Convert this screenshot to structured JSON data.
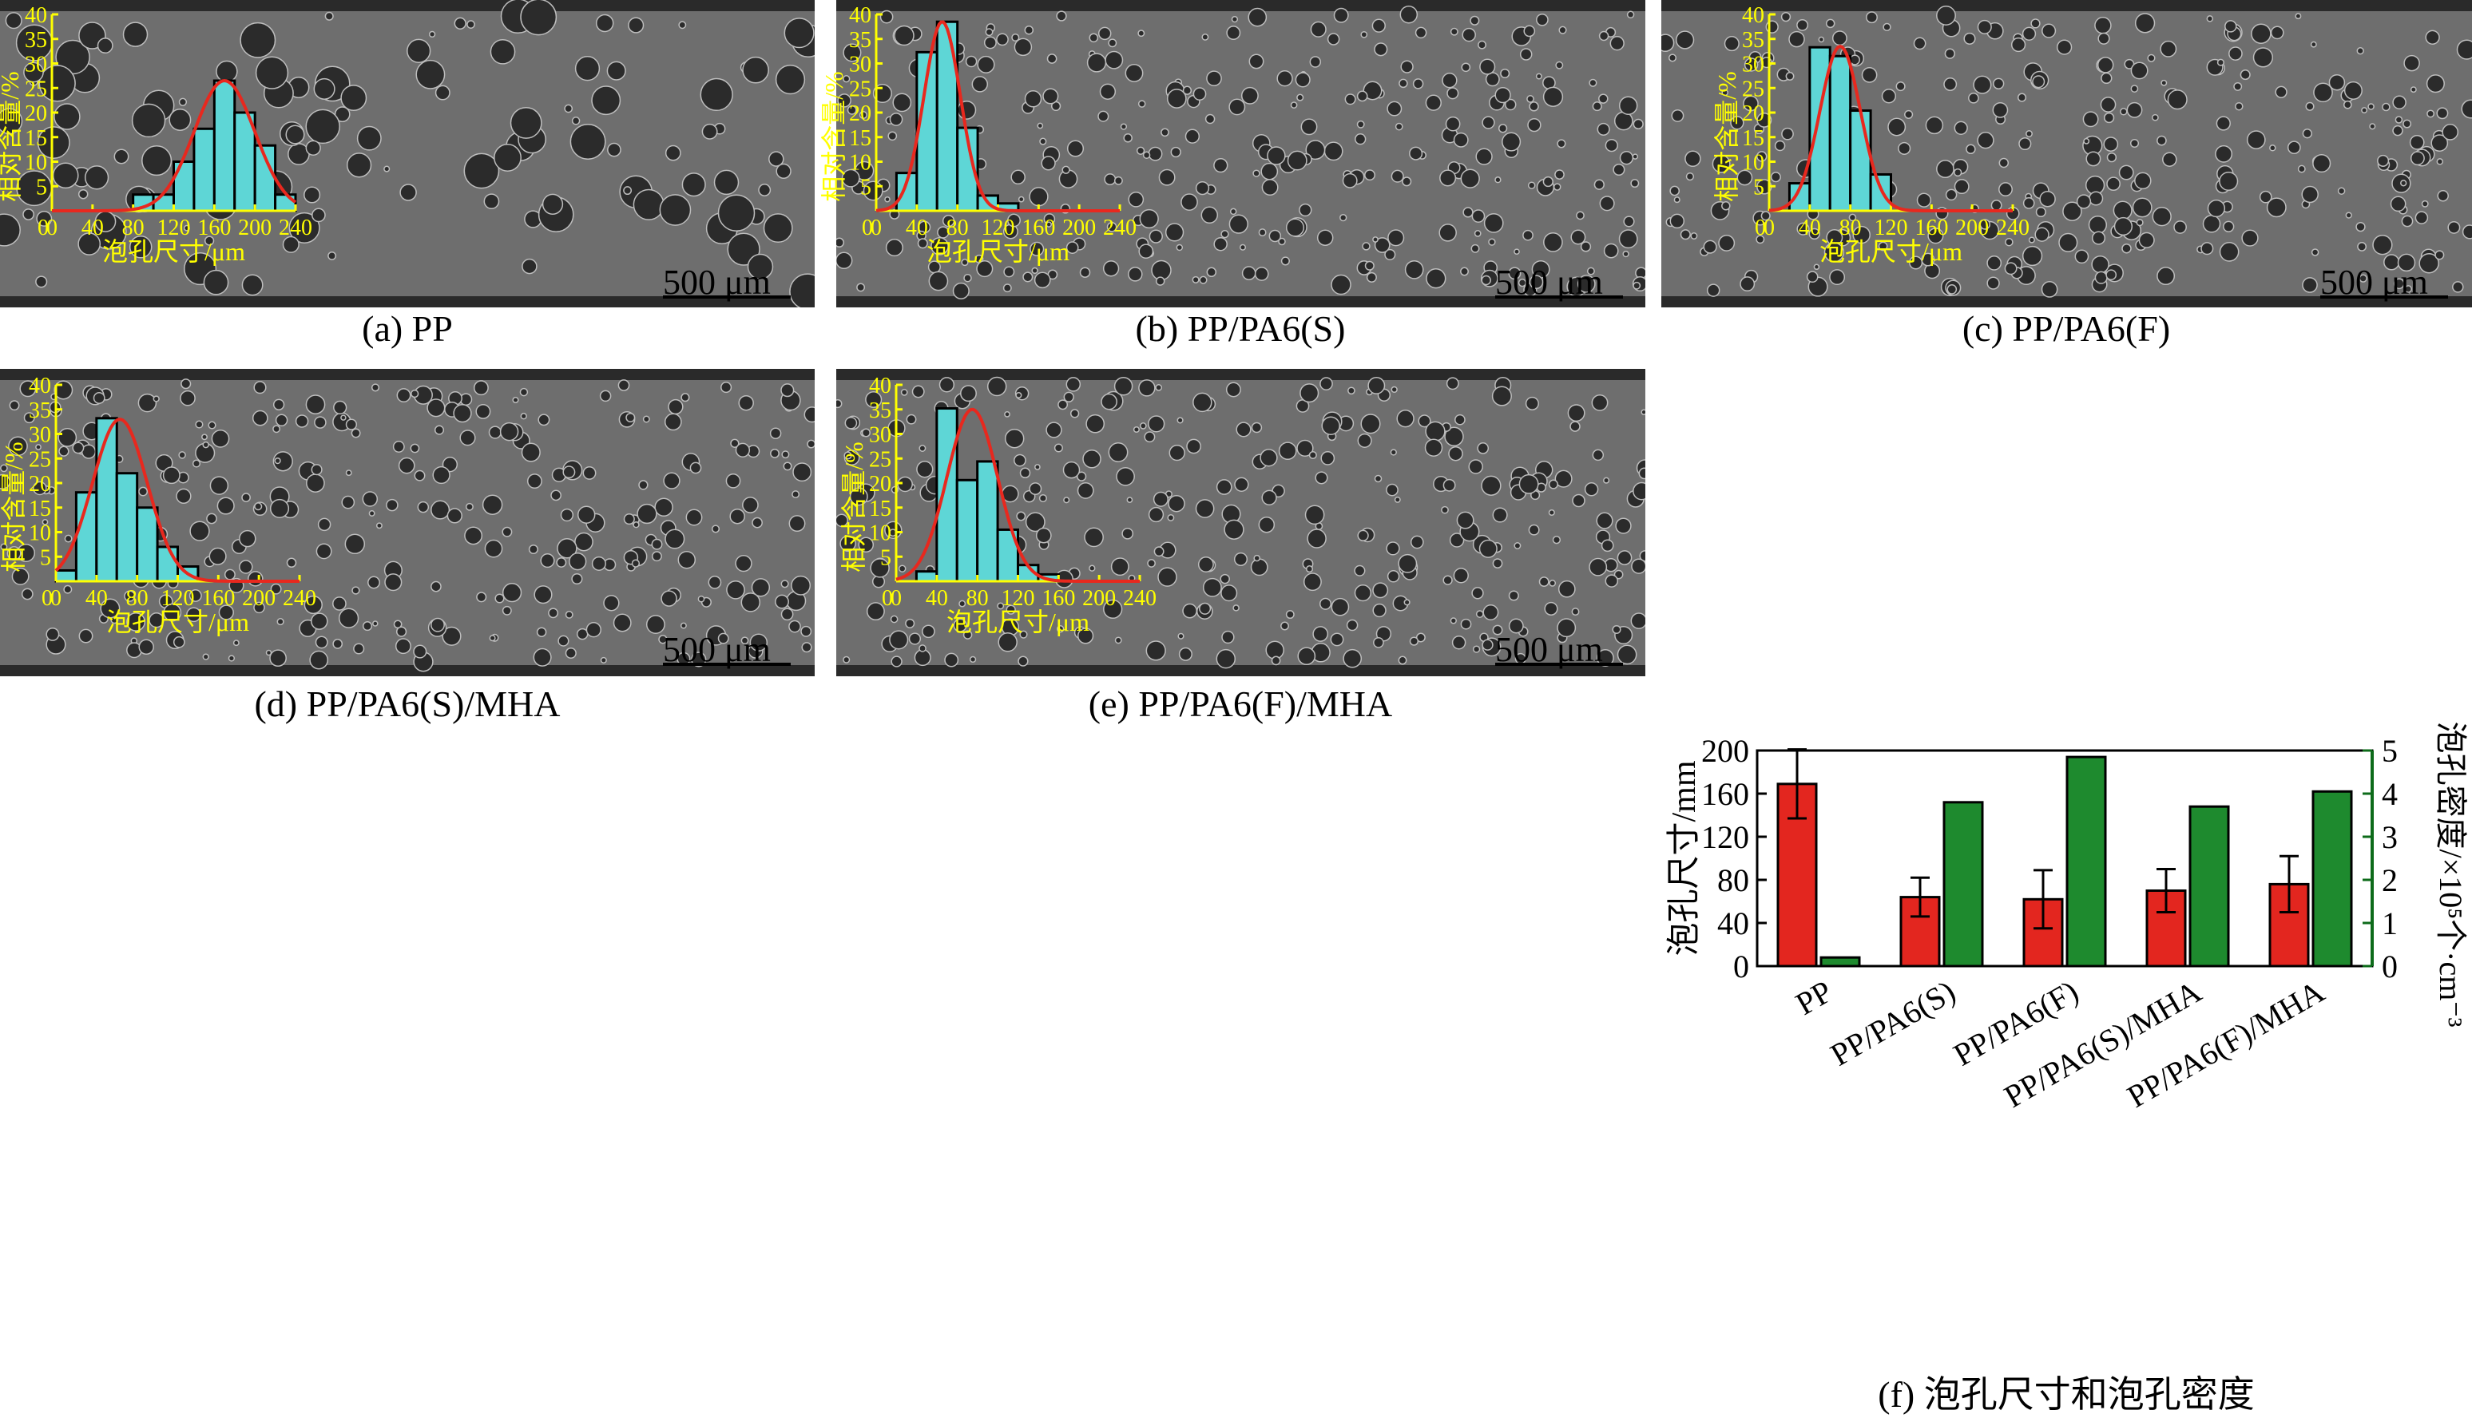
{
  "scale_bar_label": "500 μm",
  "colors": {
    "histogram_axis": "#ffff00",
    "histogram_bar": "#5ed6d6",
    "fit_curve": "#e8281e",
    "size_bar": "#e3261f",
    "density_bar": "#1e8a2e",
    "density_axis": "#0d6b1a",
    "sem_background": "#6e6e6e"
  },
  "captions": {
    "a": "(a) PP",
    "b": "(b) PP/PA6(S)",
    "c": "(c) PP/PA6(F)",
    "d": "(d) PP/PA6(S)/MHA",
    "e": "(e) PP/PA6(F)/MHA",
    "f": "(f) 泡孔尺寸和泡孔密度"
  },
  "chart_data": [
    {
      "id": "a",
      "type": "bar",
      "title": "",
      "xlabel": "泡孔尺寸/μm",
      "ylabel": "相对含量/%",
      "xlim": [
        0,
        240
      ],
      "ylim": [
        0,
        40
      ],
      "xticks": [
        0,
        40,
        80,
        120,
        160,
        200,
        240
      ],
      "yticks": [
        5,
        10,
        15,
        20,
        25,
        30,
        35,
        40
      ],
      "bin_width": 20,
      "bin_starts": [
        80,
        100,
        120,
        140,
        160,
        180,
        200,
        220
      ],
      "values": [
        3.3,
        3.3,
        10,
        16.7,
        26.5,
        20,
        13.3,
        3.3
      ],
      "fit": {
        "mean": 170,
        "sd": 30,
        "peak": 26.5
      }
    },
    {
      "id": "b",
      "type": "bar",
      "title": "",
      "xlabel": "泡孔尺寸/μm",
      "ylabel": "相对含量/%",
      "xlim": [
        0,
        240
      ],
      "ylim": [
        0,
        40
      ],
      "xticks": [
        0,
        40,
        80,
        120,
        160,
        200,
        240
      ],
      "yticks": [
        5,
        10,
        15,
        20,
        25,
        30,
        35,
        40
      ],
      "bin_width": 20,
      "bin_starts": [
        20,
        40,
        60,
        80,
        100,
        120
      ],
      "values": [
        7.7,
        32.3,
        38.5,
        16.9,
        3.1,
        1.5
      ],
      "fit": {
        "mean": 65,
        "sd": 18,
        "peak": 38.5
      }
    },
    {
      "id": "c",
      "type": "bar",
      "title": "",
      "xlabel": "泡孔尺寸/μm",
      "ylabel": "相对含量/%",
      "xlim": [
        0,
        240
      ],
      "ylim": [
        0,
        40
      ],
      "xticks": [
        0,
        40,
        80,
        120,
        160,
        200,
        240
      ],
      "yticks": [
        5,
        10,
        15,
        20,
        25,
        30,
        35,
        40
      ],
      "bin_width": 20,
      "bin_starts": [
        20,
        40,
        60,
        80,
        100
      ],
      "values": [
        5.6,
        33.3,
        31.5,
        20.4,
        7.4
      ],
      "fit": {
        "mean": 70,
        "sd": 20,
        "peak": 33.5
      }
    },
    {
      "id": "d",
      "type": "bar",
      "title": "",
      "xlabel": "泡孔尺寸/μm",
      "ylabel": "相对含量/%",
      "xlim": [
        0,
        240
      ],
      "ylim": [
        0,
        40
      ],
      "xticks": [
        0,
        40,
        80,
        120,
        160,
        200,
        240
      ],
      "yticks": [
        5,
        10,
        15,
        20,
        25,
        30,
        35,
        40
      ],
      "bin_width": 20,
      "bin_starts": [
        0,
        20,
        40,
        60,
        80,
        100,
        120
      ],
      "values": [
        2.2,
        18.1,
        33.2,
        22.0,
        15.0,
        7.0,
        3.0
      ],
      "fit": {
        "mean": 63,
        "sd": 27,
        "peak": 33
      }
    },
    {
      "id": "e",
      "type": "bar",
      "title": "",
      "xlabel": "泡孔尺寸/μm",
      "ylabel": "相对含量/%",
      "xlim": [
        0,
        240
      ],
      "ylim": [
        0,
        40
      ],
      "xticks": [
        0,
        40,
        80,
        120,
        160,
        200,
        240
      ],
      "yticks": [
        5,
        10,
        15,
        20,
        25,
        30,
        35,
        40
      ],
      "bin_width": 20,
      "bin_starts": [
        20,
        40,
        60,
        80,
        100,
        120,
        140
      ],
      "values": [
        2.0,
        35.2,
        20.6,
        24.4,
        10.5,
        3.3,
        1.4
      ],
      "fit": {
        "mean": 75,
        "sd": 25,
        "peak": 35
      }
    },
    {
      "id": "f",
      "type": "bar",
      "title": "",
      "categories": [
        "PP",
        "PP/PA6(S)",
        "PP/PA6(F)",
        "PP/PA6(S)/MHA",
        "PP/PA6(F)/MHA"
      ],
      "ylabel": "泡孔尺寸/mm",
      "ylim": [
        0,
        200
      ],
      "yticks": [
        0,
        40,
        80,
        120,
        160,
        200
      ],
      "y2label": "泡孔密度/×10⁵个·cm⁻³",
      "y2lim": [
        0,
        5
      ],
      "y2ticks": [
        0,
        1,
        2,
        3,
        4,
        5
      ],
      "series": [
        {
          "axis": "left",
          "values": [
            169,
            64,
            62,
            70,
            76
          ],
          "errors": [
            32,
            18,
            27,
            20,
            26
          ]
        },
        {
          "axis": "right",
          "values": [
            0.2,
            3.8,
            4.85,
            3.7,
            4.05
          ]
        }
      ]
    }
  ]
}
